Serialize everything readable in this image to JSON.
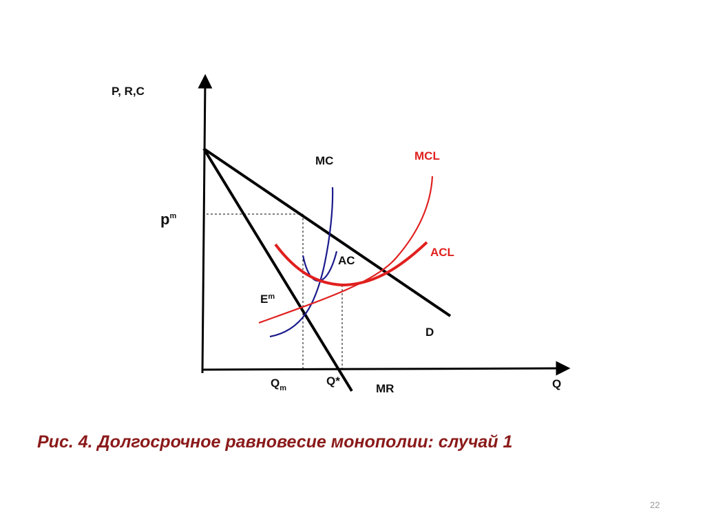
{
  "axes": {
    "y_label": "P, R,C",
    "x_label": "Q"
  },
  "curve_labels": {
    "mc": "MC",
    "mcl": "MCL",
    "acl": "ACL",
    "ac": "AC",
    "d": "D",
    "mr": "MR"
  },
  "points": {
    "pm_base": "p",
    "pm_sup": "m",
    "em_base": "E",
    "em_sup": "m",
    "qm_base": "Q",
    "qm_sub": "m",
    "qstar": "Q*"
  },
  "colors": {
    "black_curves": "#000000",
    "mc_curve": "#1a1a8c",
    "long_run_curves": "#e0201f",
    "caption": "#8b1a1a"
  },
  "caption": "Рис. 4. Долгосрочное равновесие монополии: случай 1",
  "page_number": "22"
}
